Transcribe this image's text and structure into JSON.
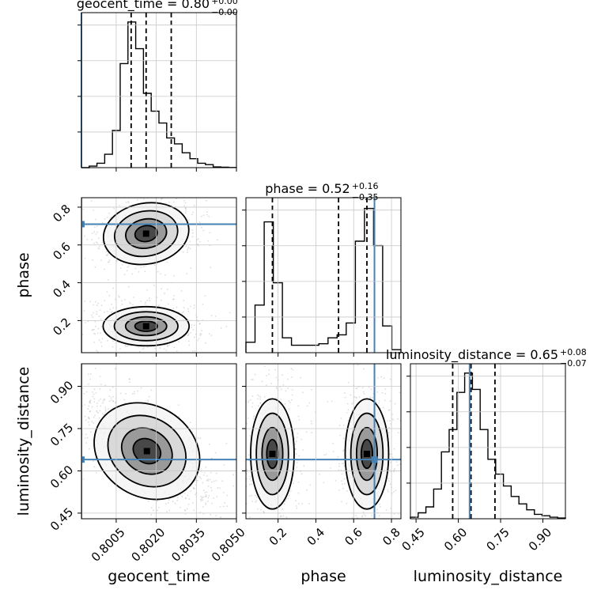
{
  "chart_data": {
    "type": "corner",
    "parameters": [
      {
        "name": "geocent_time",
        "title": "geocent_time = 0.80",
        "title_sup": "+0.00",
        "title_sub": "−0.00",
        "range": [
          0.7992,
          0.805
        ],
        "ticks": [
          0.8005,
          0.802,
          0.8035,
          0.805
        ],
        "tick_labels": [
          "0.8005",
          "0.8020",
          "0.8035",
          "0.8050"
        ],
        "truth": 0.7992,
        "quantiles": [
          0.80106,
          0.80162,
          0.80256
        ],
        "hist": [
          0,
          0.01,
          0.03,
          0.09,
          0.25,
          0.7,
          0.98,
          0.8,
          0.5,
          0.38,
          0.3,
          0.2,
          0.16,
          0.1,
          0.06,
          0.03,
          0.02,
          0.005,
          0.003,
          0.001
        ]
      },
      {
        "name": "phase",
        "title": "phase = 0.52",
        "title_sup": "+0.16",
        "title_sub": "−0.35",
        "range": [
          0.03,
          0.85
        ],
        "ticks": [
          0.2,
          0.4,
          0.6,
          0.8
        ],
        "tick_labels": [
          "0.2",
          "0.4",
          "0.6",
          "0.8"
        ],
        "truth": 0.71,
        "quantiles": [
          0.17,
          0.52,
          0.67
        ],
        "hist": [
          0.07,
          0.32,
          0.88,
          0.47,
          0.1,
          0.05,
          0.05,
          0.05,
          0.06,
          0.1,
          0.12,
          0.2,
          0.75,
          0.97,
          0.72,
          0.18,
          0.02
        ]
      },
      {
        "name": "luminosity_distance",
        "title": "luminosity_distance = 0.65",
        "title_sup": "+0.08",
        "title_sub": "−0.07",
        "range": [
          0.43,
          0.98
        ],
        "ticks": [
          0.45,
          0.6,
          0.75,
          0.9
        ],
        "tick_labels": [
          "0.45",
          "0.60",
          "0.75",
          "0.90"
        ],
        "truth": 0.64,
        "quantiles": [
          0.58,
          0.645,
          0.73
        ],
        "hist": [
          0.01,
          0.04,
          0.08,
          0.2,
          0.45,
          0.6,
          0.85,
          0.98,
          0.87,
          0.6,
          0.4,
          0.3,
          0.22,
          0.15,
          0.1,
          0.06,
          0.03,
          0.02,
          0.01,
          0.005
        ]
      }
    ],
    "pairs": [
      {
        "x": "geocent_time",
        "y": "phase"
      },
      {
        "x": "geocent_time",
        "y": "luminosity_distance"
      },
      {
        "x": "phase",
        "y": "luminosity_distance"
      }
    ],
    "truth_color": "#4682b4",
    "grid": true
  }
}
